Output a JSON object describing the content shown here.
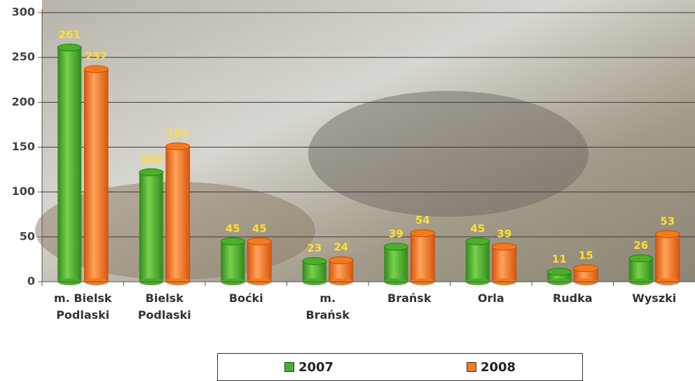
{
  "chart_data": {
    "type": "bar",
    "categories": [
      "m. Bielsk\nPodlaski",
      "Bielsk\nPodlaski",
      "Boćki",
      "m.\nBrańsk",
      "Brańsk",
      "Orla",
      "Rudka",
      "Wyszki"
    ],
    "series": [
      {
        "name": "2007",
        "color": "#4caf2a",
        "values": [
          261,
          122,
          45,
          23,
          39,
          45,
          11,
          26
        ]
      },
      {
        "name": "2008",
        "color": "#f47a20",
        "values": [
          237,
          151,
          45,
          24,
          54,
          39,
          15,
          53
        ]
      }
    ],
    "ylim": [
      0,
      300
    ],
    "yticks": [
      0,
      50,
      100,
      150,
      200,
      250,
      300
    ],
    "grid": true,
    "legend": "bottom"
  }
}
